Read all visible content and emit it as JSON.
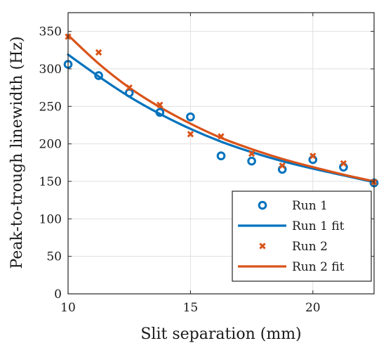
{
  "chart_data": {
    "type": "scatter",
    "title": "",
    "xlabel": "Slit separation (mm)",
    "ylabel": "Peak-to-trough linewidth (Hz)",
    "xlim": [
      10,
      22.5
    ],
    "ylim": [
      0,
      375
    ],
    "xticks": [
      10,
      15,
      20
    ],
    "yticks": [
      0,
      50,
      100,
      150,
      200,
      250,
      300,
      350
    ],
    "grid": true,
    "legend_position": "bottom-right",
    "series": [
      {
        "name": "Run 1",
        "kind": "points",
        "marker": "circle",
        "color": "#0072BD",
        "x": [
          10,
          11.25,
          12.5,
          13.75,
          15,
          16.25,
          17.5,
          18.75,
          20,
          21.25,
          22.5
        ],
        "y": [
          306,
          291,
          268,
          242,
          236,
          184,
          177,
          166,
          179,
          169,
          148
        ]
      },
      {
        "name": "Run 1 fit",
        "kind": "line",
        "color": "#0072BD",
        "x": [
          10,
          11.25,
          12.5,
          13.75,
          15,
          16.25,
          17.5,
          18.75,
          20,
          21.25,
          22.5
        ],
        "y": [
          319,
          290,
          263,
          240,
          220,
          203,
          189,
          177,
          167,
          158,
          149
        ]
      },
      {
        "name": "Run 2",
        "kind": "points",
        "marker": "x",
        "color": "#D95319",
        "x": [
          10,
          11.25,
          12.5,
          13.75,
          15,
          16.25,
          17.5,
          18.75,
          20,
          21.25,
          22.5
        ],
        "y": [
          343,
          322,
          275,
          252,
          213,
          210,
          187,
          171,
          184,
          174,
          149
        ]
      },
      {
        "name": "Run 2 fit",
        "kind": "line",
        "color": "#D95319",
        "x": [
          10,
          11.25,
          12.5,
          13.75,
          15,
          16.25,
          17.5,
          18.75,
          20,
          21.25,
          22.5
        ],
        "y": [
          345,
          307,
          275,
          249,
          227,
          208,
          193,
          180,
          169,
          159,
          150
        ]
      }
    ]
  }
}
